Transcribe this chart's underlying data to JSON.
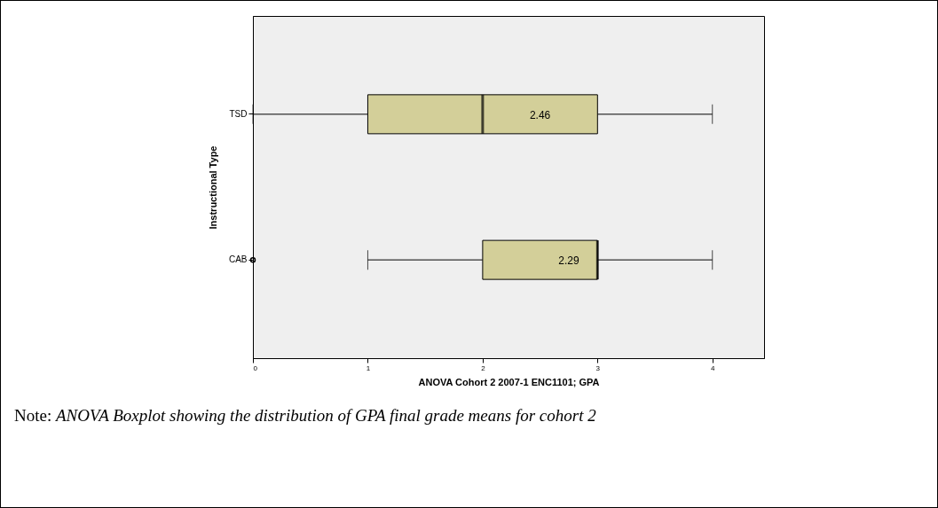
{
  "chart_data": {
    "type": "box",
    "orientation": "horizontal",
    "xlabel": "ANOVA Cohort 2 2007-1 ENC1101; GPA",
    "ylabel": "Instructional Type",
    "categories": [
      "TSD",
      "CAB"
    ],
    "boxes": [
      {
        "low": 0,
        "q1": 1,
        "median": 2,
        "q3": 3,
        "high": 4
      },
      {
        "low": 1,
        "q1": 2,
        "median": 3,
        "q3": 3,
        "high": 4,
        "outliers": [
          0
        ]
      }
    ],
    "color": "#d3cf99",
    "xlim": [
      0,
      4.45
    ],
    "xticks": [
      0,
      1,
      2,
      3,
      4
    ],
    "grid": false,
    "annotations": [
      "2.46",
      "2.29",
      "Note: ANOVA Boxplot showing the  distribution  of  GPA final grade means  for cohort 2"
    ]
  }
}
